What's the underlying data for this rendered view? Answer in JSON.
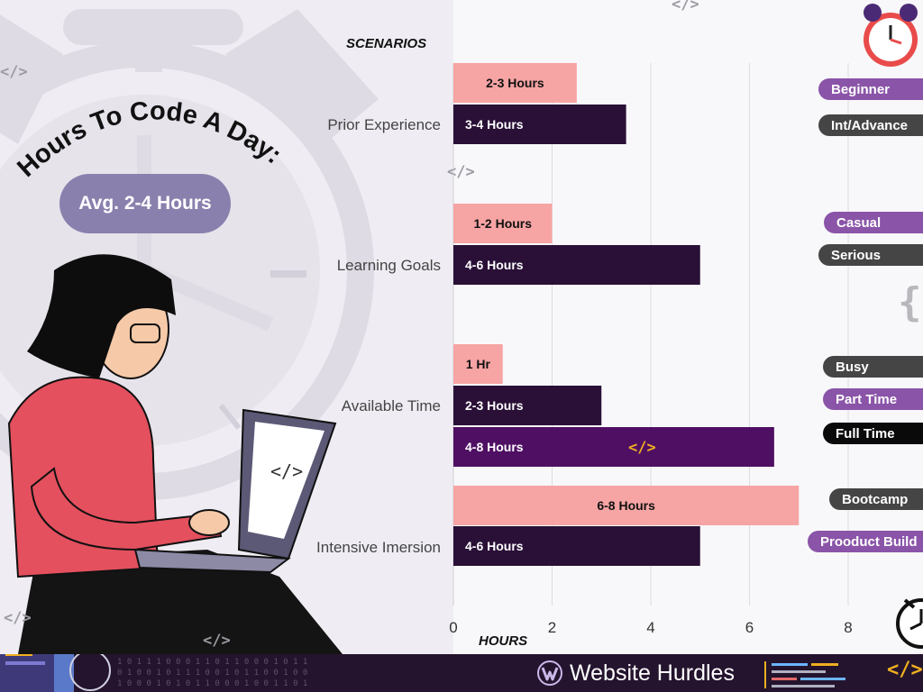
{
  "title": "Hours To Code A Day:",
  "subtitle": "Avg. 2-4 Hours",
  "brand": {
    "name": "Website Hurdles"
  },
  "footer": {
    "code_icon": "</>"
  },
  "deco": {
    "code_icon": "</>",
    "braces_icon": "{}",
    "binary": "1 0 1 1 1 0 0 0 1 1 0 1 1 0 0 0 1 0 1 1\n0 1 0 0 1 0 1 1 1 0 0 1 0 1 1 0 0 1 0 0\n1 0 0 0 1 0 1 0 1 1 0 0 0 1 0 0 1 1 0 1"
  },
  "colors": {
    "light_bar": "#f7a4a4",
    "dark_bar": "#2a1037",
    "purple_bar": "#4f0f63",
    "purple_tag": "#8a54a8",
    "gray_tag": "#454545",
    "black_tag": "#0a0a0a",
    "accent": "#f0b020",
    "footer": "#24142e"
  },
  "chart_data": {
    "type": "bar",
    "orientation": "horizontal",
    "title": "",
    "ylabel": "SCENARIOS",
    "xlabel": "HOURS",
    "xlim": [
      0,
      9.5
    ],
    "xticks": [
      0,
      2,
      4,
      6,
      8
    ],
    "grid": true,
    "categories": [
      "Prior Experience",
      "Learning Goals",
      "Available Time",
      "Intensive Imersion"
    ],
    "groups": [
      {
        "category": "Prior Experience",
        "bars": [
          {
            "label": "2-3 Hours",
            "value": 2.5,
            "color": "light",
            "tag": "Beginner",
            "tag_color": "purple"
          },
          {
            "label": "3-4 Hours",
            "value": 3.5,
            "color": "dark",
            "tag": "Int/Advance",
            "tag_color": "gray"
          }
        ]
      },
      {
        "category": "Learning Goals",
        "bars": [
          {
            "label": "1-2 Hours",
            "value": 2,
            "color": "light",
            "tag": "Casual",
            "tag_color": "purple"
          },
          {
            "label": "4-6 Hours",
            "value": 5,
            "color": "dark",
            "tag": "Serious",
            "tag_color": "gray"
          }
        ]
      },
      {
        "category": "Available Time",
        "bars": [
          {
            "label": "1 Hr",
            "value": 1,
            "color": "light",
            "tag": "Busy",
            "tag_color": "gray"
          },
          {
            "label": "2-3 Hours",
            "value": 3,
            "color": "dark",
            "tag": "Part Time",
            "tag_color": "purple"
          },
          {
            "label": "4-8 Hours",
            "value": 6.5,
            "color": "purple",
            "tag": "Full Time",
            "tag_color": "black"
          }
        ]
      },
      {
        "category": "Intensive Imersion",
        "bars": [
          {
            "label": "6-8 Hours",
            "value": 7,
            "color": "light",
            "tag": "Bootcamp",
            "tag_color": "gray"
          },
          {
            "label": "4-6 Hours",
            "value": 5,
            "color": "dark",
            "tag": "Prooduct Build",
            "tag_color": "purple"
          }
        ]
      }
    ]
  }
}
